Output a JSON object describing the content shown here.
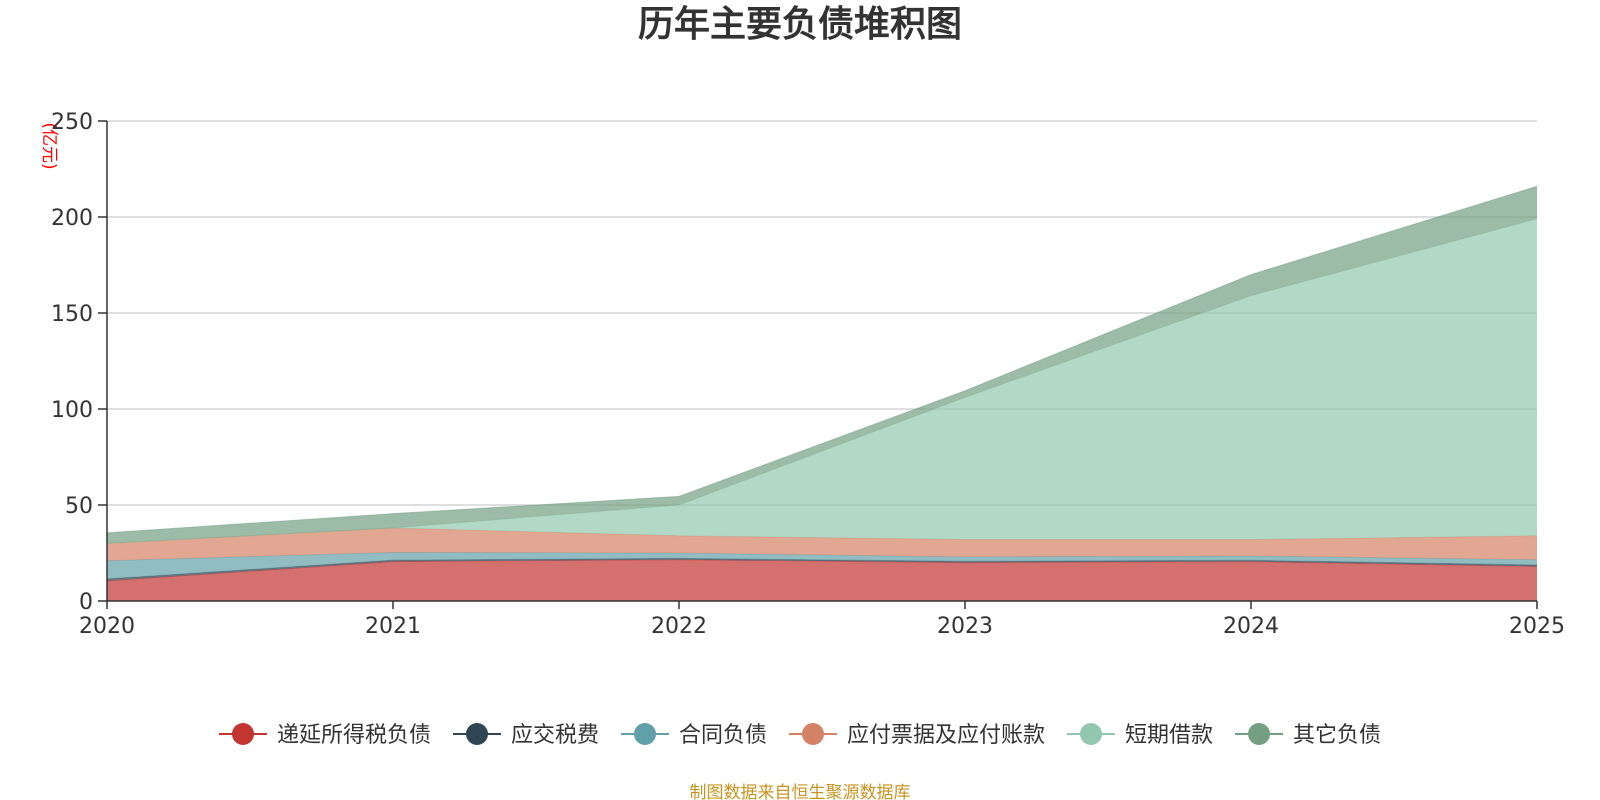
{
  "chart_data": {
    "type": "area",
    "stacked": true,
    "title": "历年主要负债堆积图",
    "unit_label": "(亿元)",
    "unit_color": "#ff0000",
    "xlabel": "",
    "ylabel": "",
    "categories": [
      "2020",
      "2021",
      "2022",
      "2023",
      "2024",
      "2025"
    ],
    "ylim": [
      0,
      250
    ],
    "yticks": [
      0,
      50,
      100,
      150,
      200,
      250
    ],
    "grid": true,
    "legend_position": "bottom",
    "series": [
      {
        "name": "递延所得税负债",
        "color": "#c23531",
        "values": [
          10.5,
          20.5,
          21.5,
          20.0,
          20.5,
          18.0
        ]
      },
      {
        "name": "应交税费",
        "color": "#2f4554",
        "values": [
          1.0,
          0.8,
          0.7,
          0.7,
          0.7,
          0.8
        ]
      },
      {
        "name": "合同负债",
        "color": "#61a0a8",
        "values": [
          9.5,
          4.0,
          2.8,
          2.3,
          2.3,
          2.7
        ]
      },
      {
        "name": "应付票据及应付账款",
        "color": "#d48265",
        "values": [
          9.0,
          12.7,
          9.0,
          9.0,
          8.5,
          12.5
        ]
      },
      {
        "name": "短期借款",
        "color": "#91c7ae",
        "values": [
          0.0,
          0.0,
          16.0,
          74.0,
          127.0,
          165.0
        ]
      },
      {
        "name": "其它负债",
        "color": "#749f83",
        "values": [
          5.5,
          7.5,
          4.5,
          3.5,
          11.0,
          17.0
        ]
      }
    ]
  },
  "footer": {
    "source": "制图数据来自恒生聚源数据库",
    "source_color": "#c8941e"
  }
}
